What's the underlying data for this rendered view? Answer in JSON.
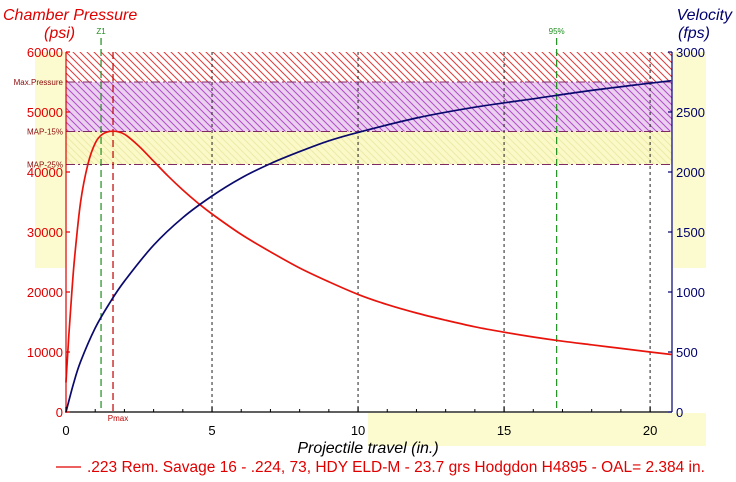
{
  "chart_data": {
    "type": "line",
    "x_axis": {
      "label": "Projectile travel (in.)",
      "lim": [
        0,
        20.75
      ],
      "ticks": [
        0,
        5,
        10,
        15,
        20
      ],
      "grid": true
    },
    "y_left": {
      "label": "Chamber Pressure",
      "unit": "(psi)",
      "lim": [
        0,
        60000
      ],
      "ticks": [
        0,
        10000,
        20000,
        30000,
        40000,
        50000,
        60000
      ],
      "grid": false,
      "color": "#e00000"
    },
    "y_right": {
      "label": "Velocity",
      "unit": "(fps)",
      "lim": [
        0,
        3000
      ],
      "ticks": [
        0,
        500,
        1000,
        1500,
        2000,
        2500,
        3000
      ],
      "color": "#00006e"
    },
    "series": [
      {
        "y_axis": "left",
        "color": "#e8140c",
        "x": [
          0,
          0.1,
          0.2,
          0.3,
          0.5,
          0.75,
          1.0,
          1.25,
          1.61,
          2.0,
          2.5,
          3.0,
          3.5,
          4.0,
          4.5,
          5.0,
          6.0,
          7.0,
          8.0,
          9.0,
          10.0,
          11.0,
          12.0,
          13.0,
          14.0,
          15.0,
          16.0,
          17.0,
          18.0,
          19.0,
          20.0,
          20.7
        ],
        "y": [
          5000,
          13000,
          20000,
          26000,
          35000,
          41300,
          44800,
          46300,
          46800,
          46300,
          44300,
          41800,
          39300,
          37000,
          34900,
          33000,
          29600,
          26700,
          24000,
          21700,
          19600,
          17900,
          16500,
          15300,
          14200,
          13300,
          12500,
          11800,
          11200,
          10600,
          10000,
          9600
        ]
      },
      {
        "y_axis": "right",
        "color": "#0a0a6e",
        "x": [
          0,
          0.25,
          0.5,
          1.0,
          1.5,
          2.0,
          3.0,
          4.0,
          5.0,
          6.0,
          7.0,
          8.0,
          9.0,
          10.0,
          12.0,
          14.0,
          16.0,
          18.0,
          20.0,
          20.7
        ],
        "y": [
          0,
          230,
          420,
          700,
          910,
          1090,
          1390,
          1620,
          1800,
          1950,
          2070,
          2170,
          2260,
          2330,
          2450,
          2540,
          2610,
          2680,
          2740,
          2760
        ]
      }
    ],
    "pressure_limits": [
      {
        "label": "Max.Pressure",
        "value": 55000
      },
      {
        "label": "MAP-15%",
        "value": 46750
      },
      {
        "label": "MAP-25%",
        "value": 41250
      }
    ],
    "pressure_zones": [
      {
        "from": 55000,
        "to": 60000,
        "fill": "#ffffff",
        "hatch": "#e23a3a"
      },
      {
        "from": 46750,
        "to": 55000,
        "fill": "#ecd0f0",
        "hatch": "#b14fc9"
      },
      {
        "from": 41250,
        "to": 46750,
        "fill": "#fbf9c8",
        "hatch": "#eeeaa8"
      }
    ],
    "burn_markers": [
      {
        "label": "Z1",
        "x": 1.2,
        "color": "#1f8f1f"
      },
      {
        "label": "95%",
        "x": 16.8,
        "color": "#1f8f1f"
      }
    ],
    "pmax_marker": {
      "label": "Pmax",
      "x": 1.61,
      "color": "#c00000"
    },
    "legend": {
      "placement": "bottom",
      "entries": [
        {
          "text": ".223 Rem. Savage 16 - .224, 73, HDY ELD-M - 23.7 grs Hodgdon H4895 - OAL= 2.384 in.",
          "color": "#e00000"
        }
      ]
    }
  }
}
